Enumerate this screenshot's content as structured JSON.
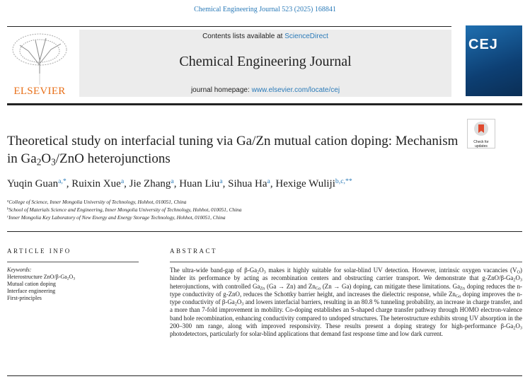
{
  "header": {
    "journal_ref": "Chemical Engineering Journal 523 (2025) 168841",
    "contents_prefix": "Contents lists available at ",
    "contents_link": "ScienceDirect",
    "journal_name": "Chemical Engineering Journal",
    "homepage_prefix": "journal homepage: ",
    "homepage_link": "www.elsevier.com/locate/cej",
    "publisher": "ELSEVIER",
    "cover_title": "CEJ",
    "check_updates": "Check for updates"
  },
  "article": {
    "title": [
      "Theoretical study on interfacial tuning via Ga/Zn mutual cation doping: Mechanism in Ga",
      {
        "sub": "2"
      },
      "O",
      {
        "sub": "3"
      },
      "/ZnO heterojunctions"
    ],
    "author_separator": ", ",
    "authors": [
      {
        "name": "Yuqin Guan",
        "sup": "a,*"
      },
      {
        "name": "Ruixin Xue",
        "sup": "a"
      },
      {
        "name": "Jie Zhang",
        "sup": "a"
      },
      {
        "name": "Huan Liu",
        "sup": "a"
      },
      {
        "name": "Sihua Ha",
        "sup": "a"
      },
      {
        "name": "Hexige Wuliji",
        "sup": "b,c,**"
      }
    ],
    "affiliations": [
      {
        "sup": "a",
        "text": "College of Science, Inner Mongolia University of Technology, Hohhot, 010051, China"
      },
      {
        "sup": "b",
        "text": "School of Materials Science and Engineering, Inner Mongolia University of Technology, Hohhot, 010051, China"
      },
      {
        "sup": "c",
        "text": "Inner Mongolia Key Laboratory of New Energy and Energy Storage Technology, Hohhot, 010051, China"
      }
    ],
    "article_info_heading": "ARTICLE INFO",
    "keywords_label": "Keywords:",
    "keywords": [
      [
        "Heterostructure ZnO/β-Ga",
        {
          "sub": "2"
        },
        "O",
        {
          "sub": "3"
        }
      ],
      [
        "Mutual cation doping"
      ],
      [
        "Interface engineering"
      ],
      [
        "First-principles"
      ]
    ],
    "abstract_heading": "ABSTRACT",
    "abstract": [
      "The ultra-wide band-gap of β-Ga",
      {
        "sub": "2"
      },
      "O",
      {
        "sub": "3"
      },
      " makes it highly suitable for solar-blind UV detection. However, intrinsic oxygen vacancies (V",
      {
        "sub": "O"
      },
      ") hinder its performance by acting as recombination centers and obstructing carrier transport. We demonstrate that g-ZnO/β-Ga",
      {
        "sub": "2"
      },
      "O",
      {
        "sub": "3"
      },
      " heterojunctions, with controlled Ga",
      {
        "sub": "Zn"
      },
      " (Ga → Zn) and Zn",
      {
        "sub": "Ga"
      },
      " (Zn → Ga) doping, can mitigate these limitations. Ga",
      {
        "sub": "Zn"
      },
      " doping reduces the n-type conductivity of g-ZnO, reduces the Schottky barrier height, and increases the dielectric response, while Zn",
      {
        "sub": "Ga"
      },
      " doping improves the n-type conductivity of β-Ga",
      {
        "sub": "2"
      },
      "O",
      {
        "sub": "3"
      },
      " and lowers interfacial barriers, resulting in an 80.8 % tunneling probability, an increase in charge transfer, and a more than 7-fold improvement in mobility. Co-doping establishes an S-shaped charge transfer pathway through HOMO electron-valence band hole recombination, enhancing conductivity compared to undoped structures. The heterostructure exhibits strong UV absorption in the 200–300 nm range, along with improved responsivity. These results present a doping strategy for high-performance β-Ga",
      {
        "sub": "2"
      },
      "O",
      {
        "sub": "3"
      },
      " photodetectors, particularly for solar-blind applications that demand fast response time and low dark current."
    ]
  }
}
